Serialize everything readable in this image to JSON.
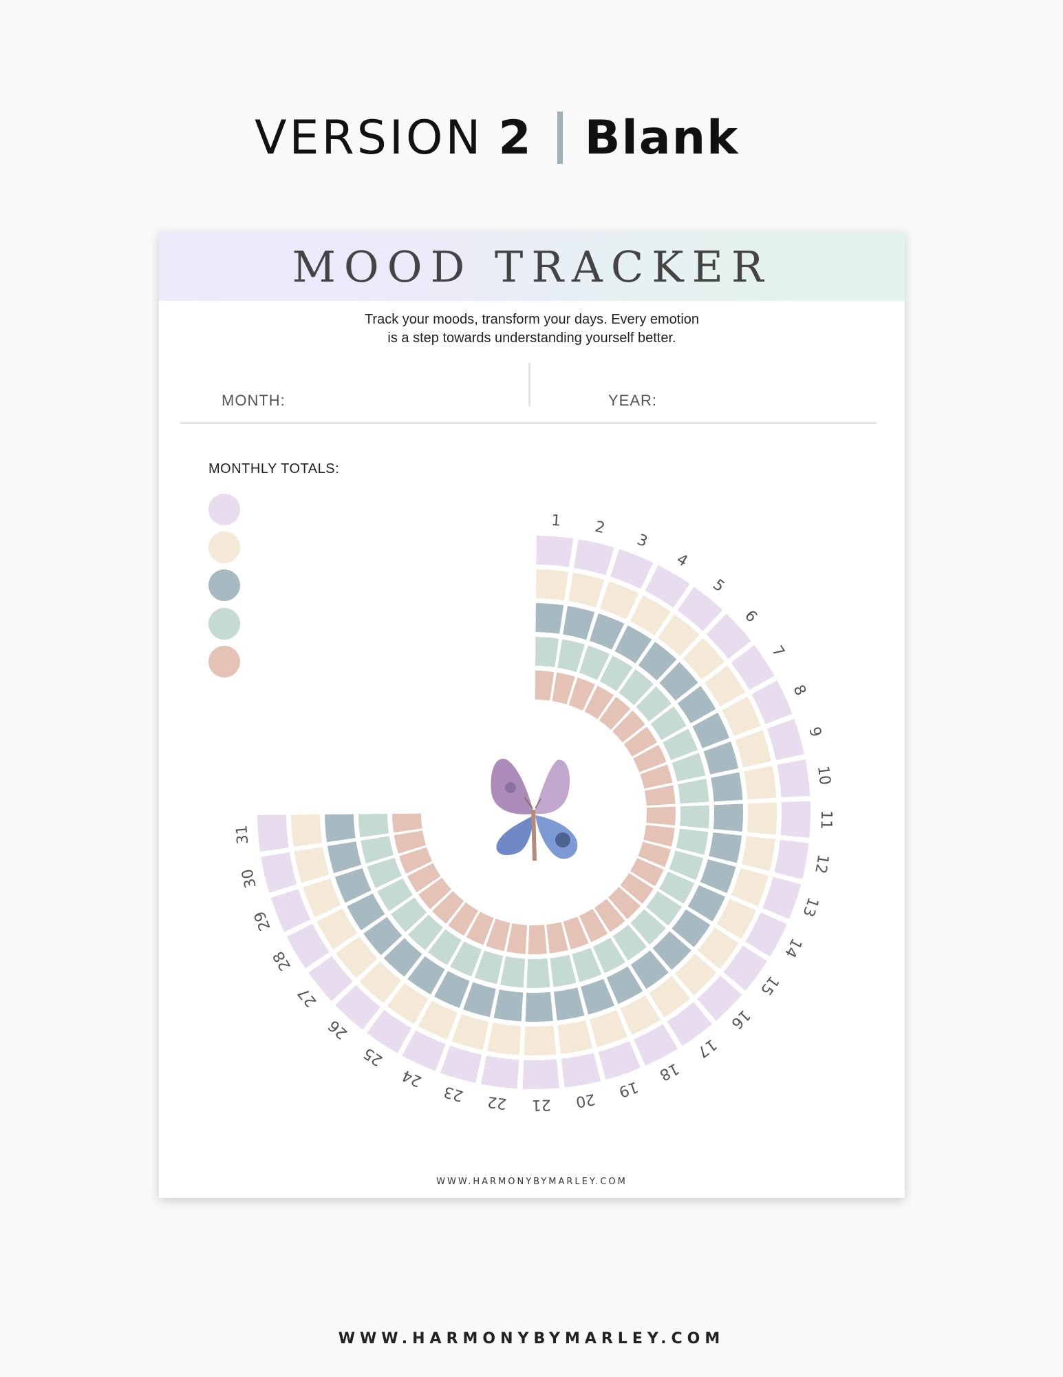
{
  "heading": {
    "version_word": "VERSION",
    "version_number": "2",
    "variant": "Blank"
  },
  "sheet": {
    "title": "MOOD TRACKER",
    "tagline_line1": "Track your moods, transform your days. Every emotion",
    "tagline_line2": "is a step towards understanding yourself better.",
    "month_label": "MONTH:",
    "year_label": "YEAR:",
    "totals_label": "MONTHLY TOTALS:",
    "mood_colors": [
      "#e8dcef",
      "#f3e9d6",
      "#a7bac2",
      "#c5dad3",
      "#e5c2b6"
    ],
    "days": [
      "1",
      "2",
      "3",
      "4",
      "5",
      "6",
      "7",
      "8",
      "9",
      "10",
      "11",
      "12",
      "13",
      "14",
      "15",
      "16",
      "17",
      "18",
      "19",
      "20",
      "21",
      "22",
      "23",
      "24",
      "25",
      "26",
      "27",
      "28",
      "29",
      "30",
      "31"
    ],
    "center_image": "butterfly-illustration",
    "footer": "WWW.HARMONYBYMARLEY.COM"
  },
  "page_footer": "WWW.HARMONYBYMARLEY.COM"
}
